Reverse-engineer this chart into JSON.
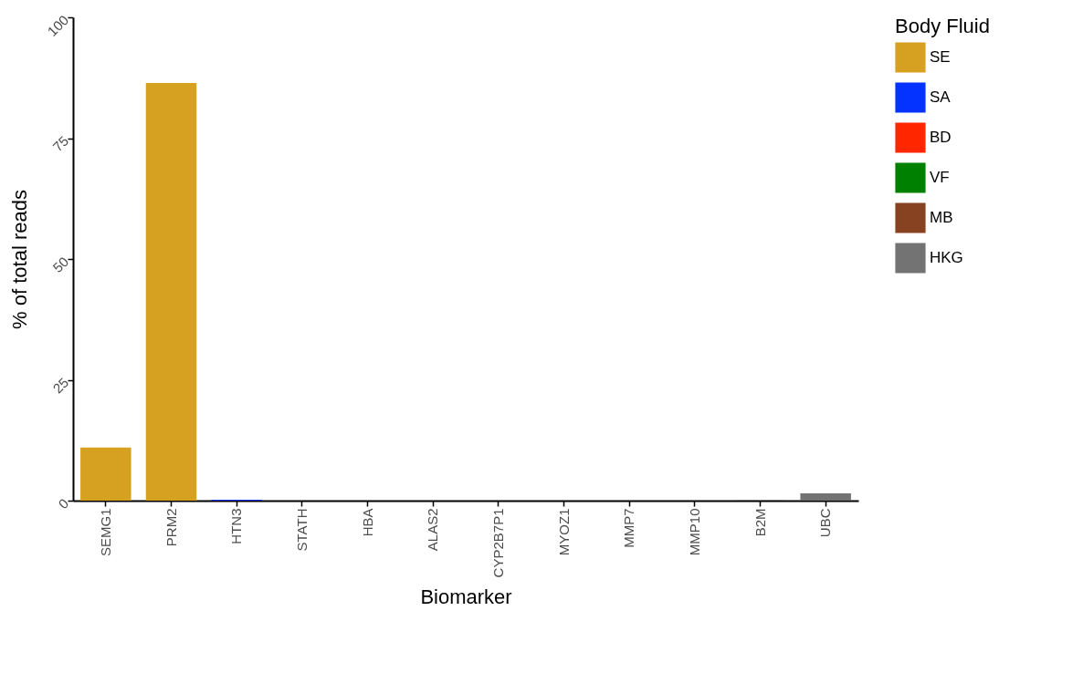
{
  "chart_data": {
    "type": "bar",
    "xlabel": "Biomarker",
    "ylabel": "% of total reads",
    "legend_title": "Body Fluid",
    "categories": [
      "SEMG1",
      "PRM2",
      "HTN3",
      "STATH",
      "HBA",
      "ALAS2",
      "CYP2B7P1",
      "MYOZ1",
      "MMP7",
      "MMP10",
      "B2M",
      "UBC"
    ],
    "series": [
      {
        "name": "SE",
        "color": "#d6a020",
        "values": [
          11,
          86.4,
          null,
          null,
          null,
          null,
          null,
          null,
          null,
          null,
          null,
          null
        ]
      },
      {
        "name": "SA",
        "color": "#0433ff",
        "values": [
          null,
          null,
          0.2,
          0,
          null,
          null,
          null,
          null,
          null,
          null,
          null,
          null
        ]
      },
      {
        "name": "BD",
        "color": "#ff2600",
        "values": [
          null,
          null,
          null,
          null,
          0,
          0,
          null,
          null,
          null,
          null,
          null,
          null
        ]
      },
      {
        "name": "VF",
        "color": "#008000",
        "values": [
          null,
          null,
          null,
          null,
          null,
          null,
          0,
          0,
          null,
          null,
          null,
          null
        ]
      },
      {
        "name": "MB",
        "color": "#864221",
        "values": [
          null,
          null,
          null,
          null,
          null,
          null,
          null,
          null,
          0,
          0,
          null,
          null
        ]
      },
      {
        "name": "HKG",
        "color": "#737373",
        "values": [
          null,
          null,
          null,
          null,
          null,
          null,
          null,
          null,
          null,
          null,
          0.1,
          1.5
        ]
      }
    ],
    "ylim": [
      0,
      100
    ],
    "yticks": [
      0,
      25,
      50,
      75,
      100
    ],
    "grid": false,
    "legend": "right"
  }
}
